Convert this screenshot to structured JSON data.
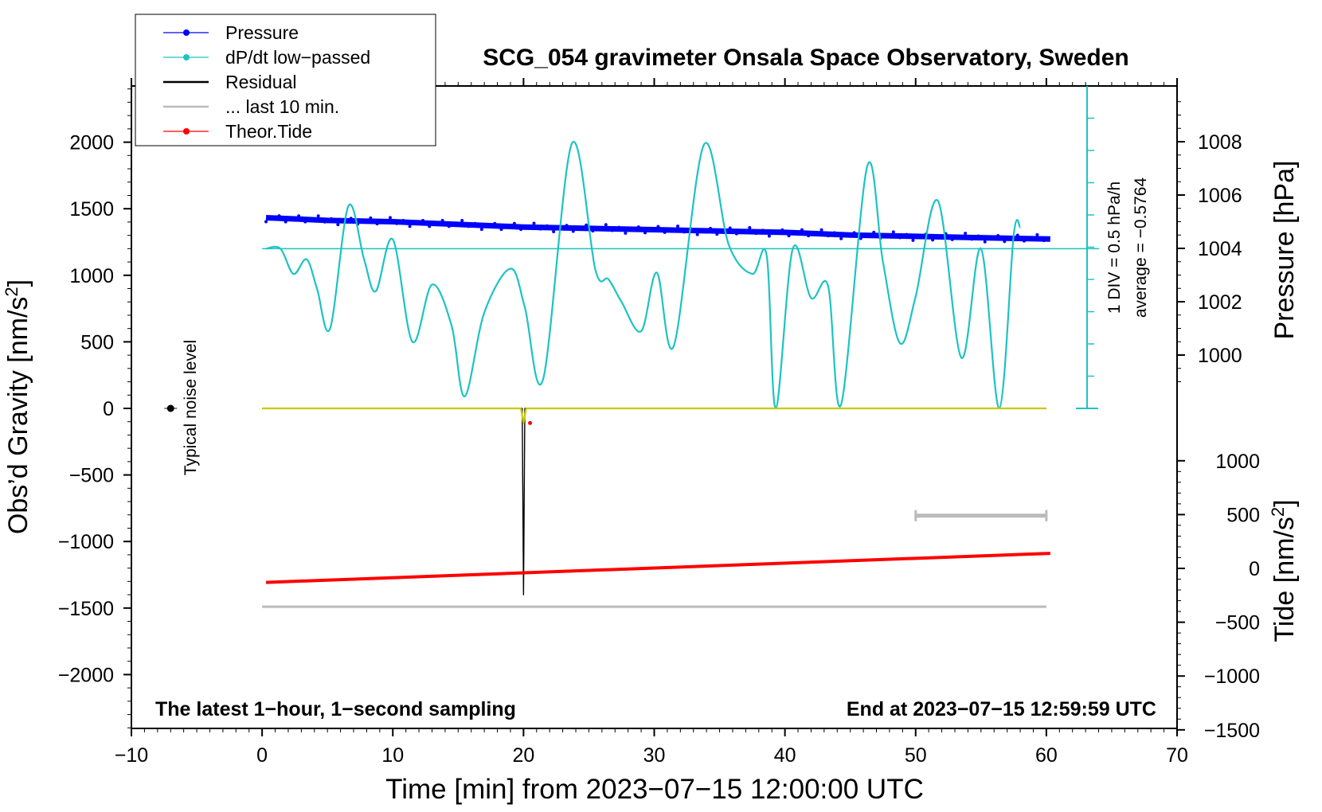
{
  "chart_data": {
    "type": "line",
    "title": "SCG_054 gravimeter Onsala Space Observatory, Sweden",
    "xlabel": "Time [min] from 2023−07−15 12:00:00 UTC",
    "ylabel_left_main": "Obs’d Gravity [nm/s",
    "ylabel_left_sup": "2",
    "ylabel_left_end": "]",
    "ylabel_right_pressure": "Pressure [hPa]",
    "ylabel_right_tide_main": "Tide [nm/s",
    "ylabel_right_tide_sup": "2",
    "ylabel_right_tide_end": "]",
    "xlim": [
      -10,
      70
    ],
    "ylim_gravity": [
      -2400,
      2400
    ],
    "ylim_pressure_ticks_range": [
      1000,
      1008
    ],
    "ylim_tide_ticks_range": [
      -1500,
      1000
    ],
    "x_ticks": [
      {
        "v": -10,
        "label": "−10"
      },
      {
        "v": 0,
        "label": "0"
      },
      {
        "v": 10,
        "label": "10"
      },
      {
        "v": 20,
        "label": "20"
      },
      {
        "v": 30,
        "label": "30"
      },
      {
        "v": 40,
        "label": "40"
      },
      {
        "v": 50,
        "label": "50"
      },
      {
        "v": 60,
        "label": "60"
      },
      {
        "v": 70,
        "label": "70"
      }
    ],
    "y_ticks_gravity": [
      {
        "v": 2000,
        "label": "2000"
      },
      {
        "v": 1500,
        "label": "1500"
      },
      {
        "v": 1000,
        "label": "1000"
      },
      {
        "v": 500,
        "label": "500"
      },
      {
        "v": 0,
        "label": "0"
      },
      {
        "v": -500,
        "label": "−500"
      },
      {
        "v": -1000,
        "label": "−1000"
      },
      {
        "v": -1500,
        "label": "−1500"
      },
      {
        "v": -2000,
        "label": "−2000"
      }
    ],
    "y_ticks_pressure": [
      {
        "v": 1008,
        "label": "1008"
      },
      {
        "v": 1006,
        "label": "1006"
      },
      {
        "v": 1004,
        "label": "1004"
      },
      {
        "v": 1002,
        "label": "1002"
      },
      {
        "v": 1000,
        "label": "1000"
      }
    ],
    "y_ticks_tide": [
      {
        "v": 1000,
        "label": "1000"
      },
      {
        "v": 500,
        "label": "500"
      },
      {
        "v": 0,
        "label": "0"
      },
      {
        "v": -500,
        "label": "−500"
      },
      {
        "v": -1000,
        "label": "−1000"
      },
      {
        "v": -1500,
        "label": "−1500"
      }
    ],
    "legend": {
      "position": "top-left",
      "entries": [
        {
          "name": "Pressure",
          "color": "#0000ff",
          "marker": true
        },
        {
          "name": "dP/dt low−passed",
          "color": "#1cc3c3",
          "marker": true
        },
        {
          "name": "Residual",
          "color": "#000000",
          "marker": false
        },
        {
          "name": "... last 10 min.",
          "color": "#bbbbbb",
          "marker": false
        },
        {
          "name": "Theor.Tide",
          "color": "#ff0000",
          "marker": true
        }
      ]
    },
    "annotations": {
      "bottom_left": "The latest 1−hour, 1−second sampling",
      "bottom_right": "End at 2023−07−15 12:59:59 UTC",
      "noise_label": "Typical noise level",
      "dpdt_scale": "1 DIV = 0.5 hPa/h",
      "dpdt_average": "average = −0.5764"
    },
    "noise_marker": {
      "x": -7,
      "y": 0
    },
    "scale_bar": {
      "x_start": 50,
      "x_end": 60,
      "tide_value": 490
    },
    "series": [
      {
        "name": "Pressure",
        "color": "#0000ff",
        "axis": "pressure_hpa",
        "x": [
          0.3,
          5,
          10,
          15,
          20,
          25,
          30,
          35,
          40,
          45,
          50,
          55,
          60.3
        ],
        "y": [
          1005.15,
          1005.05,
          1005.0,
          1004.9,
          1004.8,
          1004.75,
          1004.7,
          1004.65,
          1004.6,
          1004.5,
          1004.45,
          1004.4,
          1004.35
        ]
      },
      {
        "name": "dP/dt low−passed",
        "color": "#1cc3c3",
        "axis": "gravity_units",
        "x": [
          0.3,
          1.4,
          2.4,
          3.4,
          4.2,
          5.2,
          6.6,
          7.8,
          8.7,
          10.0,
          11.5,
          13.0,
          14.5,
          15.5,
          17.0,
          19.0,
          20.1,
          21.5,
          23.7,
          25.5,
          26.5,
          27.5,
          29.0,
          30.2,
          31.5,
          33.8,
          35.7,
          37.5,
          38.6,
          39.3,
          40.6,
          42.0,
          43.3,
          44.3,
          46.3,
          47.5,
          48.8,
          50.0,
          51.7,
          53.5,
          55.0,
          56.4,
          57.5,
          58.0
        ],
        "y": [
          1200,
          1200,
          1010,
          1120,
          900,
          600,
          1520,
          1120,
          880,
          1270,
          500,
          930,
          620,
          90,
          720,
          1050,
          760,
          220,
          1990,
          1040,
          970,
          800,
          580,
          1020,
          470,
          1980,
          1230,
          1010,
          1150,
          0,
          1200,
          830,
          920,
          30,
          1820,
          1100,
          490,
          840,
          1560,
          380,
          1200,
          0,
          1300,
          1360
        ]
      },
      {
        "name": "Residual",
        "color": "#000000",
        "axis": "gravity",
        "x": [
          0,
          19.9,
          20.0,
          20.1,
          60
        ],
        "y": [
          0,
          0,
          -1400,
          0,
          0
        ]
      },
      {
        "name": "Residual (yellow trace)",
        "color": "#c8c800",
        "axis": "gravity",
        "x": [
          0,
          19.8,
          20.0,
          20.2,
          60
        ],
        "y": [
          0,
          0,
          -110,
          0,
          0
        ]
      },
      {
        "name": "... last 10 min.",
        "color": "#bbbbbb",
        "axis": "gravity",
        "x": [
          0,
          60
        ],
        "y": [
          -1490,
          -1490
        ]
      },
      {
        "name": "Theor.Tide",
        "color": "#ff0000",
        "axis": "tide",
        "x": [
          0.3,
          60.3
        ],
        "y": [
          -130,
          140
        ]
      }
    ]
  }
}
